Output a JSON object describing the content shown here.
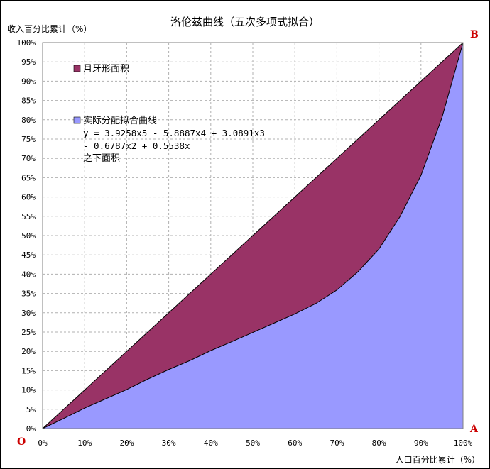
{
  "chart_data": {
    "type": "area",
    "title": "洛伦兹曲线（五次多项式拟合）",
    "xlabel": "人口百分比累计（%）",
    "ylabel": "收入百分比累计（%）",
    "xlim": [
      0,
      100
    ],
    "ylim": [
      0,
      100
    ],
    "x_ticks": [
      "0%",
      "10%",
      "20%",
      "30%",
      "40%",
      "50%",
      "60%",
      "70%",
      "80%",
      "90%",
      "100%"
    ],
    "y_ticks": [
      "0%",
      "5%",
      "10%",
      "15%",
      "20%",
      "25%",
      "30%",
      "35%",
      "40%",
      "45%",
      "50%",
      "55%",
      "60%",
      "65%",
      "70%",
      "75%",
      "80%",
      "85%",
      "90%",
      "95%",
      "100%"
    ],
    "grid": true,
    "series": [
      {
        "name": "月牙形面积",
        "color": "#993366",
        "x": [
          0,
          100
        ],
        "y": [
          0,
          100
        ]
      },
      {
        "name": "实际分配拟合曲线",
        "color": "#9999ff",
        "x": [
          0,
          5,
          10,
          15,
          20,
          25,
          30,
          35,
          40,
          45,
          50,
          55,
          60,
          65,
          70,
          75,
          80,
          85,
          90,
          95,
          100
        ],
        "y": [
          0,
          2.6,
          5.3,
          7.7,
          10.1,
          12.8,
          15.3,
          17.6,
          20.2,
          22.5,
          24.9,
          27.3,
          29.7,
          32.4,
          35.9,
          40.6,
          46.5,
          54.9,
          65.6,
          80.6,
          100
        ]
      }
    ],
    "legend": {
      "item1": "月牙形面积",
      "item2": "实际分配拟合曲线",
      "formula_line1": "y = 3.9258x5 - 5.8887x4 + 3.0891x3",
      "formula_line2": "- 0.6787x2 + 0.5538x",
      "formula_line3": "之下面积"
    },
    "corner_labels": {
      "origin": "O",
      "a": "A",
      "b": "B"
    }
  }
}
